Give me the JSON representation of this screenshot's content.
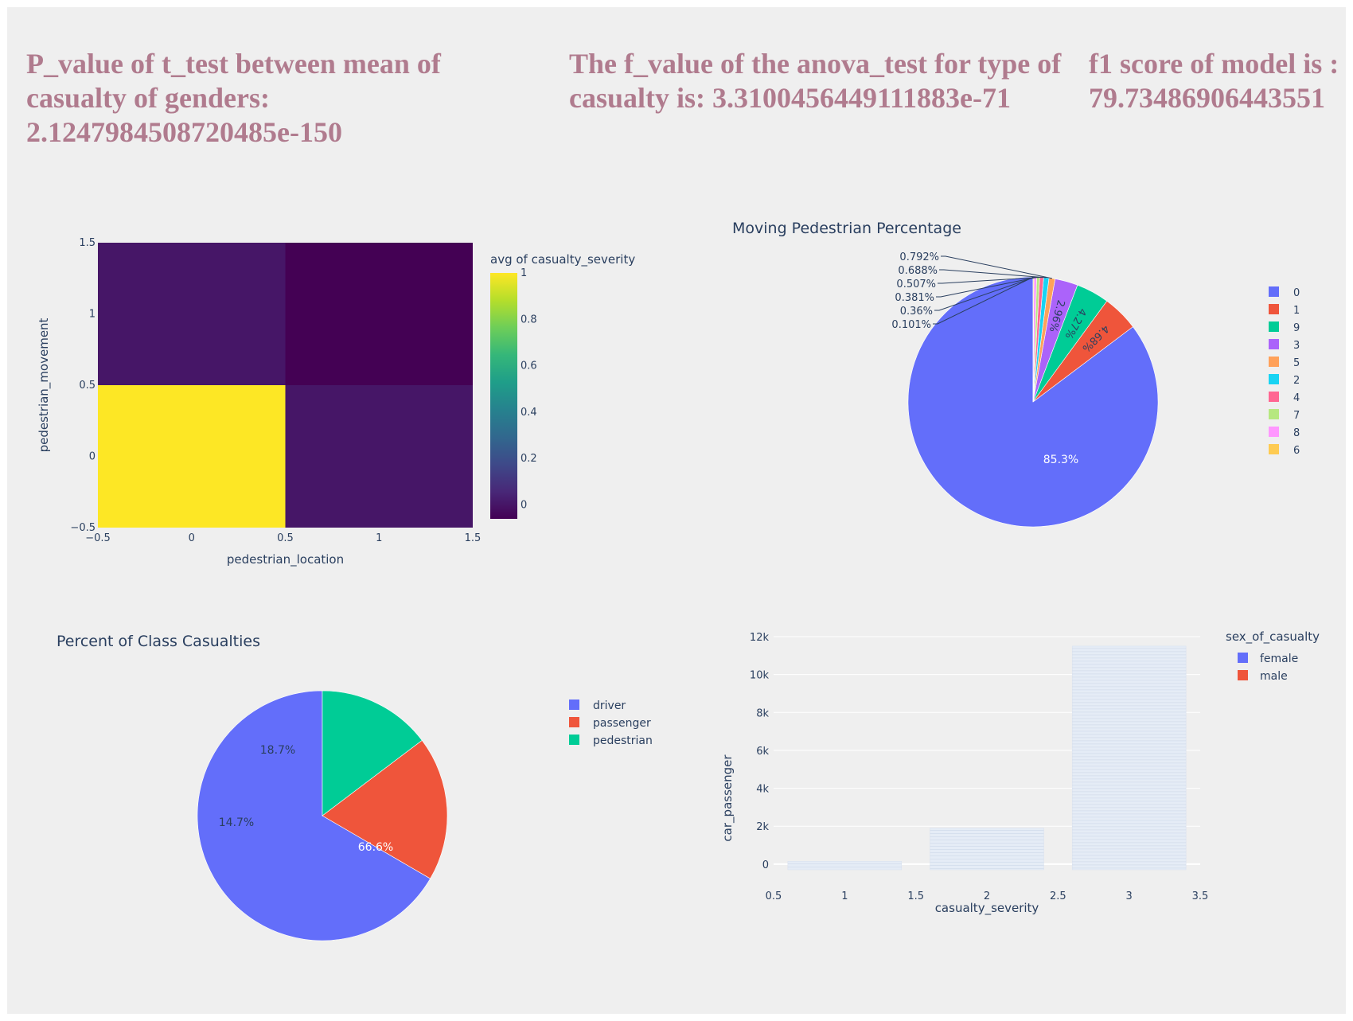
{
  "stats": {
    "ttest_text": "P_value of t_test between mean of casualty of genders: 2.1247984508720485e-150",
    "anova_text": "The f_value of the anova_test for type of casualty is: 3.3100456449111883e-71",
    "f1_text": "f1 score of model is : 79.73486906443551"
  },
  "chart_data": [
    {
      "type": "heatmap",
      "title": "",
      "xlabel": "pedestrian_location",
      "ylabel": "pedestrian_movement",
      "x": [
        0,
        1
      ],
      "y": [
        0,
        1
      ],
      "z": [
        [
          1.0,
          0.06
        ],
        [
          0.06,
          0.0
        ]
      ],
      "xlim": [
        -0.5,
        1.5
      ],
      "ylim": [
        -0.5,
        1.5
      ],
      "xticks": [
        "−0.5",
        "0",
        "0.5",
        "1",
        "1.5"
      ],
      "yticks": [
        "−0.5",
        "0",
        "0.5",
        "1",
        "1.5"
      ],
      "colorbar": {
        "title": "avg of casualty_severity",
        "ticks": [
          "0",
          "0.2",
          "0.4",
          "0.6",
          "0.8",
          "1"
        ],
        "colorscale": [
          "#440154",
          "#482878",
          "#3e4989",
          "#31688e",
          "#26828e",
          "#1f9e89",
          "#35b779",
          "#6ece58",
          "#b5de2b",
          "#fde725"
        ]
      }
    },
    {
      "type": "pie",
      "title": "Moving Pedestrian Percentage",
      "labels": [
        "0",
        "1",
        "9",
        "3",
        "5",
        "2",
        "4",
        "7",
        "8",
        "6"
      ],
      "values": [
        85.3,
        4.68,
        4.27,
        2.96,
        0.792,
        0.688,
        0.507,
        0.381,
        0.36,
        0.101
      ],
      "slice_labels": [
        "85.3%",
        "4.68%",
        "4.27%",
        "2.96%",
        "0.792%",
        "0.688%",
        "0.507%",
        "0.381%",
        "0.36%",
        "0.101%"
      ],
      "colors": [
        "#636efa",
        "#ef553b",
        "#00cc96",
        "#ab63fa",
        "#ffa15a",
        "#19d3f3",
        "#ff6692",
        "#b6e880",
        "#ff97ff",
        "#fecb52"
      ],
      "legend": "right"
    },
    {
      "type": "pie",
      "title": "Percent of Class Casualties",
      "labels": [
        "driver",
        "passenger",
        "pedestrian"
      ],
      "values": [
        66.6,
        18.7,
        14.7
      ],
      "slice_labels": [
        "66.6%",
        "18.7%",
        "14.7%"
      ],
      "colors": [
        "#636efa",
        "#ef553b",
        "#00cc96"
      ],
      "legend": "right"
    },
    {
      "type": "bar",
      "title": "",
      "xlabel": "casualty_severity",
      "ylabel": "car_passenger",
      "categories": [
        1,
        2,
        3
      ],
      "values": [
        150,
        1900,
        11500
      ],
      "xlim": [
        0.5,
        3.5
      ],
      "ylim": [
        -300,
        12000
      ],
      "xticks": [
        "0.5",
        "1",
        "1.5",
        "2",
        "2.5",
        "3",
        "3.5"
      ],
      "yticks": [
        "0",
        "2k",
        "4k",
        "6k",
        "8k",
        "10k",
        "12k"
      ],
      "legend_title": "sex_of_casualty",
      "series": [
        {
          "name": "female",
          "color": "#636efa"
        },
        {
          "name": "male",
          "color": "#ef553b"
        }
      ],
      "bar_color": "#e5ecf6"
    }
  ]
}
